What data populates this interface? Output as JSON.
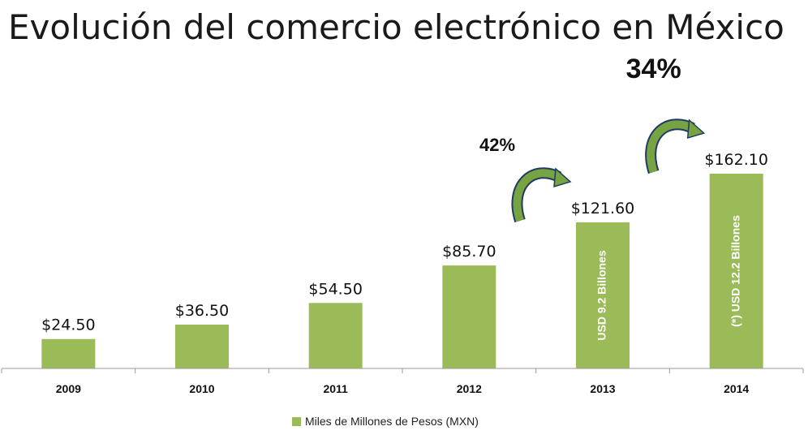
{
  "title": "Evolución del comercio electrónico en México",
  "colors": {
    "bar": "#9BBB59",
    "arrow": "#77A343",
    "arrow_outline": "#1F3B63",
    "axis": "#999999"
  },
  "chart_data": {
    "type": "bar",
    "categories": [
      "2009",
      "2010",
      "2011",
      "2012",
      "2013",
      "2014"
    ],
    "series": [
      {
        "name": "Miles de Millones de Pesos (MXN)",
        "values": [
          24.5,
          36.5,
          54.5,
          85.7,
          121.6,
          162.1
        ]
      }
    ],
    "value_labels": [
      "$24.50",
      "$36.50",
      "$54.50",
      "$85.70",
      "$121.60",
      "$162.10"
    ],
    "ylim": [
      0,
      180
    ],
    "grid": false,
    "legend": "bottom",
    "bar_annotations": [
      {
        "category": "2013",
        "text": "USD 9.2 Billones"
      },
      {
        "category": "2014",
        "text": "(*) USD 12.2 Billones"
      }
    ],
    "growth_annotations": [
      {
        "from": "2012",
        "to": "2013",
        "text": "42%"
      },
      {
        "from": "2013",
        "to": "2014",
        "text": "34%"
      }
    ]
  }
}
